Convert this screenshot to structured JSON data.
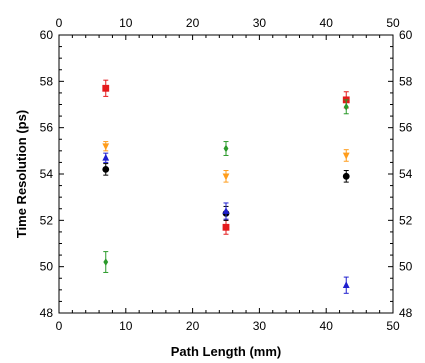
{
  "chart_data": {
    "type": "scatter",
    "title": "",
    "xlabel": "Path Length (mm)",
    "ylabel": "Time Resolution (ps)",
    "xlim": [
      0,
      50
    ],
    "ylim": [
      48,
      60
    ],
    "x_ticks": [
      0,
      10,
      20,
      30,
      40,
      50
    ],
    "y_ticks": [
      48,
      50,
      52,
      54,
      56,
      58,
      60
    ],
    "mirror_axes": true,
    "grid": false,
    "legend": "none",
    "series": [
      {
        "marker": "square",
        "color": "#e41a1c",
        "points": [
          {
            "x": 7,
            "y": 57.7,
            "err": 0.35
          },
          {
            "x": 25,
            "y": 51.7,
            "err": 0.3
          },
          {
            "x": 43,
            "y": 57.2,
            "err": 0.35
          }
        ]
      },
      {
        "marker": "triangle-down",
        "color": "#ff9d1c",
        "points": [
          {
            "x": 7,
            "y": 55.2,
            "err": 0.2
          },
          {
            "x": 25,
            "y": 53.9,
            "err": 0.25
          },
          {
            "x": 43,
            "y": 54.8,
            "err": 0.25
          }
        ]
      },
      {
        "marker": "circle",
        "color": "#000000",
        "points": [
          {
            "x": 7,
            "y": 54.2,
            "err": 0.25
          },
          {
            "x": 25,
            "y": 52.3,
            "err": 0.3
          },
          {
            "x": 43,
            "y": 53.9,
            "err": 0.25
          }
        ]
      },
      {
        "marker": "triangle-up",
        "color": "#1f1fcf",
        "points": [
          {
            "x": 7,
            "y": 54.7,
            "err": 0.2
          },
          {
            "x": 25,
            "y": 52.4,
            "err": 0.35
          },
          {
            "x": 43,
            "y": 49.2,
            "err": 0.35
          }
        ]
      },
      {
        "marker": "diamond",
        "color": "#2a9a2a",
        "points": [
          {
            "x": 7,
            "y": 50.2,
            "err": 0.45
          },
          {
            "x": 25,
            "y": 55.1,
            "err": 0.3
          },
          {
            "x": 43,
            "y": 56.9,
            "err": 0.3
          }
        ]
      }
    ]
  }
}
